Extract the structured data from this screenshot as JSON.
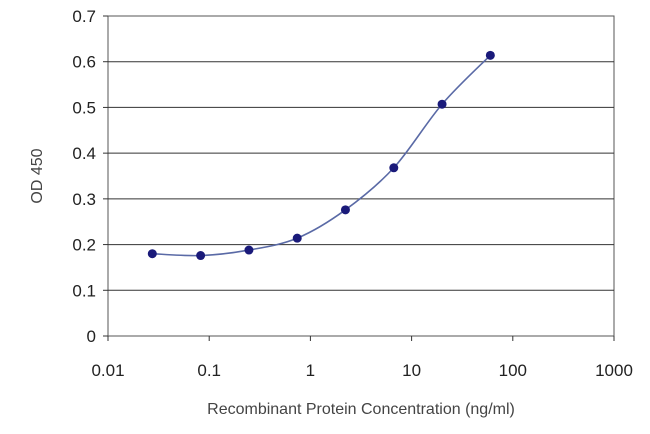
{
  "chart_data": {
    "type": "scatter",
    "xlabel": "Recombinant Protein Concentration (ng/ml)",
    "ylabel": "OD 450",
    "xscale": "log",
    "xlim": [
      0.01,
      1000
    ],
    "ylim": [
      0,
      0.7
    ],
    "xticks": [
      "0.01",
      "0.1",
      "1",
      "10",
      "100",
      "1000"
    ],
    "yticks": [
      "0",
      "0.1",
      "0.2",
      "0.3",
      "0.4",
      "0.5",
      "0.6",
      "0.7"
    ],
    "grid": "horizontal",
    "fit_line": true,
    "points": [
      {
        "x": 0.0274,
        "y": 0.18
      },
      {
        "x": 0.0823,
        "y": 0.176
      },
      {
        "x": 0.247,
        "y": 0.188
      },
      {
        "x": 0.741,
        "y": 0.214
      },
      {
        "x": 2.22,
        "y": 0.276
      },
      {
        "x": 6.67,
        "y": 0.368
      },
      {
        "x": 20,
        "y": 0.507
      },
      {
        "x": 60,
        "y": 0.614
      }
    ],
    "marker_color": "#1a1a7a",
    "line_color": "#5a6aa6"
  }
}
